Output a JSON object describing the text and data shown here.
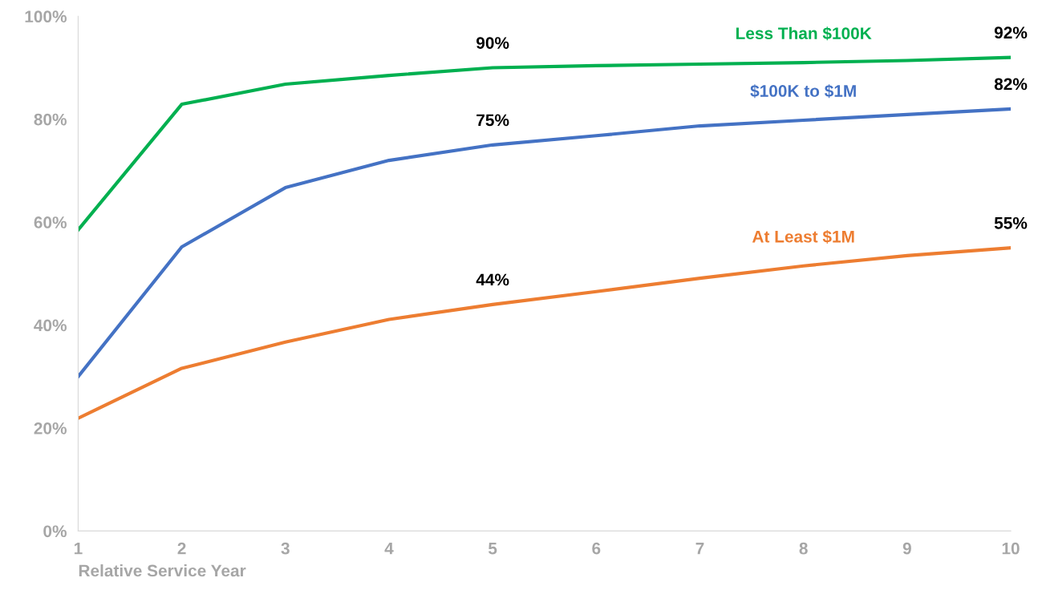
{
  "chart_data": {
    "type": "line",
    "xlabel": "Relative Service Year",
    "x": [
      1,
      2,
      3,
      4,
      5,
      6,
      7,
      8,
      9,
      10
    ],
    "series": [
      {
        "name": "Less Than $100K",
        "color": "#00b050",
        "values": [
          58.5,
          82.9,
          86.8,
          88.5,
          90,
          90.4,
          90.7,
          91,
          91.4,
          92
        ],
        "value_labels": [
          null,
          null,
          null,
          null,
          "90%",
          null,
          null,
          null,
          null,
          "92%"
        ]
      },
      {
        "name": "$100K to $1M",
        "color": "#4472c4",
        "values": [
          30,
          55.2,
          66.7,
          72,
          75,
          76.8,
          78.7,
          79.8,
          80.9,
          82
        ],
        "value_labels": [
          null,
          null,
          null,
          null,
          "75%",
          null,
          null,
          null,
          null,
          "82%"
        ]
      },
      {
        "name": "At Least $1M",
        "color": "#ed7d31",
        "values": [
          21.9,
          31.6,
          36.7,
          41.1,
          44,
          46.5,
          49.1,
          51.5,
          53.5,
          55
        ],
        "value_labels": [
          null,
          null,
          null,
          null,
          "44%",
          null,
          null,
          null,
          null,
          "55%"
        ]
      }
    ],
    "xlim": [
      1,
      10
    ],
    "xticks": [
      1,
      2,
      3,
      4,
      5,
      6,
      7,
      8,
      9,
      10
    ],
    "ylim": [
      0,
      100
    ],
    "yticks": [
      {
        "value": 0,
        "label": "0%"
      },
      {
        "value": 20,
        "label": "20%"
      },
      {
        "value": 40,
        "label": "40%"
      },
      {
        "value": 60,
        "label": "60%"
      },
      {
        "value": 80,
        "label": "80%"
      },
      {
        "value": 100,
        "label": "100%"
      }
    ],
    "grid": false,
    "legend": false,
    "marker": "none",
    "line_style": "solid"
  }
}
